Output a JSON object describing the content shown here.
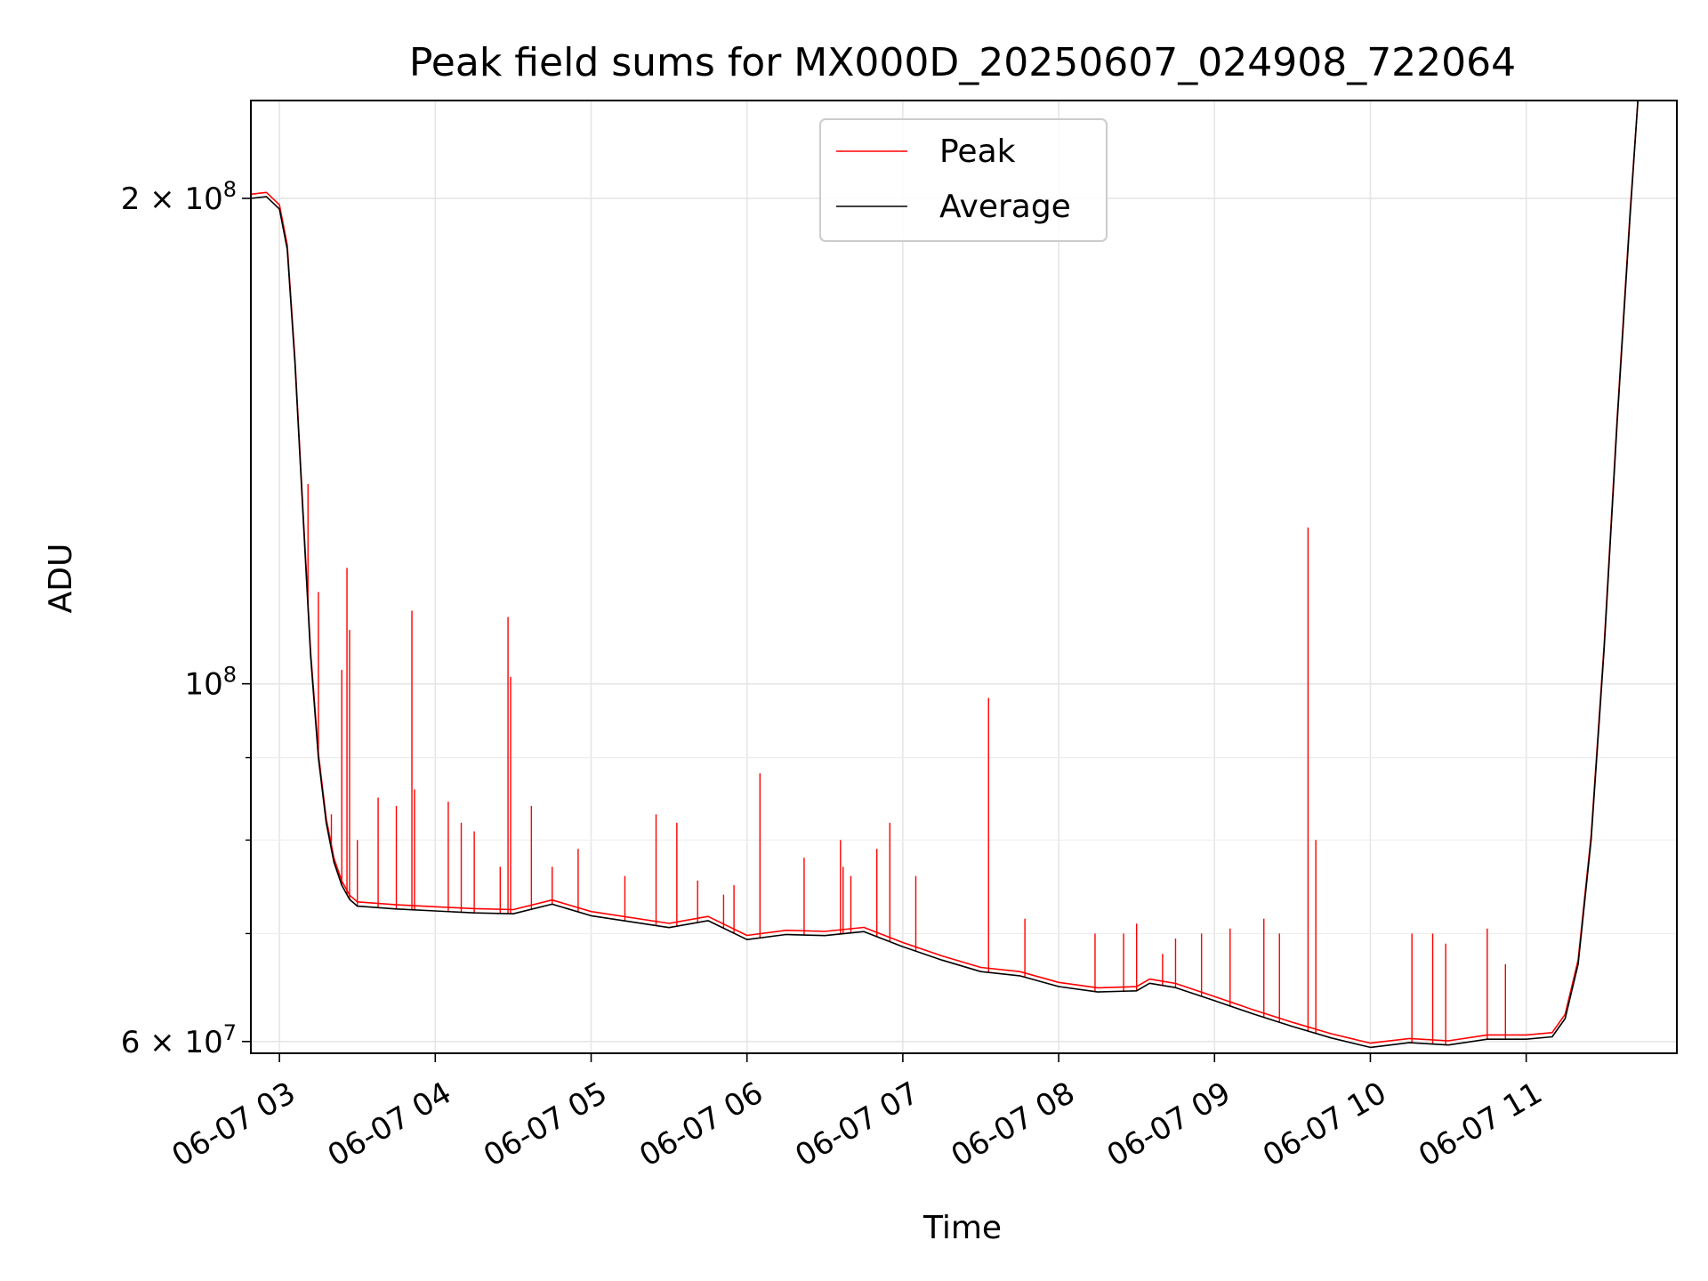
{
  "chart_data": {
    "type": "line",
    "title": "Peak field sums for MX000D_20250607_024908_722064",
    "xlabel": "Time",
    "ylabel": "ADU",
    "yscale": "log",
    "ylim": [
      59000000,
      230000000
    ],
    "xlim": [
      "2025-06-07 02:49",
      "2025-06-07 11:58"
    ],
    "grid": true,
    "legend_position": "top-center",
    "x_tick_labels": [
      "06-07 03",
      "06-07 04",
      "06-07 05",
      "06-07 06",
      "06-07 07",
      "06-07 08",
      "06-07 09",
      "06-07 10",
      "06-07 11"
    ],
    "x_tick_times": [
      "2025-06-07 03:00",
      "2025-06-07 04:00",
      "2025-06-07 05:00",
      "2025-06-07 06:00",
      "2025-06-07 07:00",
      "2025-06-07 08:00",
      "2025-06-07 09:00",
      "2025-06-07 10:00",
      "2025-06-07 11:00"
    ],
    "y_tick_labels": [
      {
        "value": 60000000,
        "base": "6 × 10",
        "exp": "7"
      },
      {
        "value": 100000000,
        "base": "10",
        "exp": "8"
      },
      {
        "value": 200000000,
        "base": "2 × 10",
        "exp": "8"
      }
    ],
    "y_minor_ticks": [
      70000000,
      80000000,
      90000000
    ],
    "series": [
      {
        "name": "Average",
        "color": "#000000",
        "points": [
          [
            "2025-06-07 02:49",
            200000000
          ],
          [
            "2025-06-07 02:55",
            200500000
          ],
          [
            "2025-06-07 03:00",
            197000000
          ],
          [
            "2025-06-07 03:03",
            186000000
          ],
          [
            "2025-06-07 03:06",
            158000000
          ],
          [
            "2025-06-07 03:09",
            128000000
          ],
          [
            "2025-06-07 03:12",
            104000000
          ],
          [
            "2025-06-07 03:15",
            90000000
          ],
          [
            "2025-06-07 03:18",
            82000000
          ],
          [
            "2025-06-07 03:21",
            77500000
          ],
          [
            "2025-06-07 03:24",
            75000000
          ],
          [
            "2025-06-07 03:27",
            73500000
          ],
          [
            "2025-06-07 03:30",
            72800000
          ],
          [
            "2025-06-07 03:45",
            72500000
          ],
          [
            "2025-06-07 04:00",
            72300000
          ],
          [
            "2025-06-07 04:15",
            72100000
          ],
          [
            "2025-06-07 04:30",
            72000000
          ],
          [
            "2025-06-07 04:45",
            73000000
          ],
          [
            "2025-06-07 05:00",
            71800000
          ],
          [
            "2025-06-07 05:30",
            70600000
          ],
          [
            "2025-06-07 05:45",
            71300000
          ],
          [
            "2025-06-07 06:00",
            69400000
          ],
          [
            "2025-06-07 06:15",
            69900000
          ],
          [
            "2025-06-07 06:30",
            69800000
          ],
          [
            "2025-06-07 06:45",
            70200000
          ],
          [
            "2025-06-07 07:00",
            68700000
          ],
          [
            "2025-06-07 07:15",
            67400000
          ],
          [
            "2025-06-07 07:30",
            66300000
          ],
          [
            "2025-06-07 07:45",
            65900000
          ],
          [
            "2025-06-07 08:00",
            64900000
          ],
          [
            "2025-06-07 08:15",
            64400000
          ],
          [
            "2025-06-07 08:30",
            64500000
          ],
          [
            "2025-06-07 08:35",
            65200000
          ],
          [
            "2025-06-07 08:45",
            64800000
          ],
          [
            "2025-06-07 09:00",
            63600000
          ],
          [
            "2025-06-07 09:15",
            62400000
          ],
          [
            "2025-06-07 09:30",
            61300000
          ],
          [
            "2025-06-07 09:45",
            60300000
          ],
          [
            "2025-06-07 10:00",
            59500000
          ],
          [
            "2025-06-07 10:15",
            59900000
          ],
          [
            "2025-06-07 10:30",
            59700000
          ],
          [
            "2025-06-07 10:45",
            60200000
          ],
          [
            "2025-06-07 11:00",
            60200000
          ],
          [
            "2025-06-07 11:10",
            60400000
          ],
          [
            "2025-06-07 11:15",
            62000000
          ],
          [
            "2025-06-07 11:20",
            67000000
          ],
          [
            "2025-06-07 11:25",
            80000000
          ],
          [
            "2025-06-07 11:30",
            105000000
          ],
          [
            "2025-06-07 11:35",
            145000000
          ],
          [
            "2025-06-07 11:40",
            195000000
          ],
          [
            "2025-06-07 11:43",
            230000000
          ]
        ]
      },
      {
        "name": "Peak",
        "color": "#ff0000",
        "spikes": [
          [
            "2025-06-07 03:11",
            133000000
          ],
          [
            "2025-06-07 03:15",
            114000000
          ],
          [
            "2025-06-07 03:20",
            83000000
          ],
          [
            "2025-06-07 03:24",
            102000000
          ],
          [
            "2025-06-07 03:26",
            118000000
          ],
          [
            "2025-06-07 03:27",
            108000000
          ],
          [
            "2025-06-07 03:30",
            80000000
          ],
          [
            "2025-06-07 03:38",
            85000000
          ],
          [
            "2025-06-07 03:45",
            84000000
          ],
          [
            "2025-06-07 03:51",
            111000000
          ],
          [
            "2025-06-07 03:52",
            86000000
          ],
          [
            "2025-06-07 04:05",
            84500000
          ],
          [
            "2025-06-07 04:10",
            82000000
          ],
          [
            "2025-06-07 04:15",
            81000000
          ],
          [
            "2025-06-07 04:25",
            77000000
          ],
          [
            "2025-06-07 04:28",
            110000000
          ],
          [
            "2025-06-07 04:29",
            101000000
          ],
          [
            "2025-06-07 04:37",
            84000000
          ],
          [
            "2025-06-07 04:45",
            77000000
          ],
          [
            "2025-06-07 04:55",
            79000000
          ],
          [
            "2025-06-07 05:13",
            76000000
          ],
          [
            "2025-06-07 05:25",
            83000000
          ],
          [
            "2025-06-07 05:33",
            82000000
          ],
          [
            "2025-06-07 05:41",
            75500000
          ],
          [
            "2025-06-07 05:51",
            74000000
          ],
          [
            "2025-06-07 05:55",
            75000000
          ],
          [
            "2025-06-07 06:05",
            88000000
          ],
          [
            "2025-06-07 06:22",
            78000000
          ],
          [
            "2025-06-07 06:36",
            80000000
          ],
          [
            "2025-06-07 06:37",
            77000000
          ],
          [
            "2025-06-07 06:40",
            76000000
          ],
          [
            "2025-06-07 06:50",
            79000000
          ],
          [
            "2025-06-07 06:55",
            82000000
          ],
          [
            "2025-06-07 07:05",
            76000000
          ],
          [
            "2025-06-07 07:33",
            98000000
          ],
          [
            "2025-06-07 07:47",
            71500000
          ],
          [
            "2025-06-07 08:14",
            70000000
          ],
          [
            "2025-06-07 08:25",
            70000000
          ],
          [
            "2025-06-07 08:30",
            71000000
          ],
          [
            "2025-06-07 08:40",
            68000000
          ],
          [
            "2025-06-07 08:45",
            69500000
          ],
          [
            "2025-06-07 08:55",
            70000000
          ],
          [
            "2025-06-07 09:06",
            70500000
          ],
          [
            "2025-06-07 09:19",
            71500000
          ],
          [
            "2025-06-07 09:25",
            70000000
          ],
          [
            "2025-06-07 09:36",
            125000000
          ],
          [
            "2025-06-07 09:39",
            80000000
          ],
          [
            "2025-06-07 10:16",
            70000000
          ],
          [
            "2025-06-07 10:24",
            70000000
          ],
          [
            "2025-06-07 10:29",
            69000000
          ],
          [
            "2025-06-07 10:45",
            70500000
          ],
          [
            "2025-06-07 10:52",
            67000000
          ]
        ]
      }
    ]
  }
}
